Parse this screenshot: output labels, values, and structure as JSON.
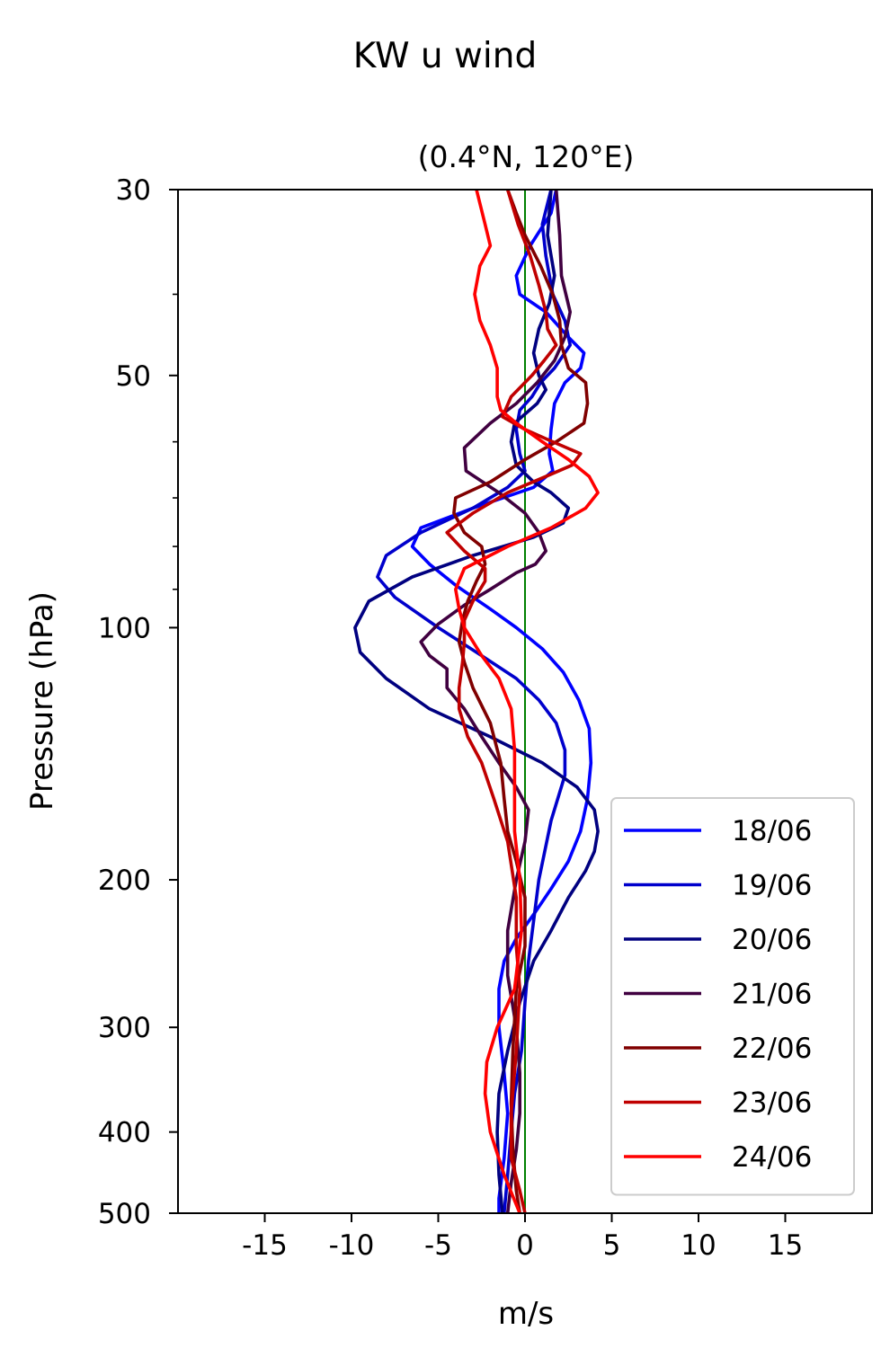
{
  "chart_data": {
    "type": "line",
    "title": "KW u wind",
    "subtitle": "(0.4°N, 120°E)",
    "xlabel": "m/s",
    "ylabel": "Pressure (hPa)",
    "xlim": [
      -20,
      20
    ],
    "ylim": [
      500,
      30
    ],
    "y_scale": "log",
    "x_ticks": [
      -15,
      -10,
      -5,
      0,
      5,
      10,
      15
    ],
    "y_ticks": [
      30,
      50,
      100,
      200,
      300,
      400,
      500
    ],
    "y_minor_ticks": [
      40,
      60,
      70,
      80,
      90
    ],
    "reference_line": {
      "x": 0,
      "color": "#008000"
    },
    "legend_position": "lower-right",
    "grid": false,
    "series": [
      {
        "name": "18/06",
        "color": "#0000ff",
        "points": [
          [
            1.8,
            30
          ],
          [
            1.5,
            32
          ],
          [
            0.3,
            35
          ],
          [
            -0.5,
            38
          ],
          [
            -0.3,
            40
          ],
          [
            1.2,
            42
          ],
          [
            2.5,
            45
          ],
          [
            3.4,
            47
          ],
          [
            3.2,
            49
          ],
          [
            2.3,
            51
          ],
          [
            1.7,
            54
          ],
          [
            1.5,
            58
          ],
          [
            1.4,
            62
          ],
          [
            1.6,
            65
          ],
          [
            0.5,
            68
          ],
          [
            -3,
            72
          ],
          [
            -6,
            76
          ],
          [
            -6.5,
            80
          ],
          [
            -5.5,
            84
          ],
          [
            -4,
            89
          ],
          [
            -2,
            95
          ],
          [
            -0.5,
            100
          ],
          [
            1,
            106
          ],
          [
            2.2,
            113
          ],
          [
            3.1,
            122
          ],
          [
            3.7,
            132
          ],
          [
            3.8,
            145
          ],
          [
            3.6,
            160
          ],
          [
            3.2,
            175
          ],
          [
            2.5,
            190
          ],
          [
            1.5,
            205
          ],
          [
            0.5,
            220
          ],
          [
            -0.5,
            235
          ],
          [
            -1.2,
            250
          ],
          [
            -1.5,
            270
          ],
          [
            -1.5,
            300
          ],
          [
            -1.2,
            340
          ],
          [
            -1,
            380
          ],
          [
            -1.2,
            430
          ],
          [
            -1.5,
            480
          ],
          [
            -1.5,
            500
          ]
        ]
      },
      {
        "name": "19/06",
        "color": "#0000cc",
        "points": [
          [
            1.5,
            30
          ],
          [
            1,
            33
          ],
          [
            1.2,
            36
          ],
          [
            1.6,
            40
          ],
          [
            2.3,
            43
          ],
          [
            2.6,
            46
          ],
          [
            1.7,
            49
          ],
          [
            0.9,
            51
          ],
          [
            0.4,
            53
          ],
          [
            -0.3,
            55
          ],
          [
            -0.5,
            58
          ],
          [
            -0.3,
            62
          ],
          [
            0,
            65
          ],
          [
            -1,
            68
          ],
          [
            -3,
            72
          ],
          [
            -6,
            77
          ],
          [
            -8,
            82
          ],
          [
            -8.5,
            87
          ],
          [
            -7.5,
            92
          ],
          [
            -5,
            100
          ],
          [
            -2.5,
            108
          ],
          [
            -0.5,
            115
          ],
          [
            0.8,
            122
          ],
          [
            1.8,
            130
          ],
          [
            2.3,
            140
          ],
          [
            2.3,
            150
          ],
          [
            1.5,
            170
          ],
          [
            0.8,
            200
          ],
          [
            0.2,
            250
          ],
          [
            0,
            280
          ],
          [
            -0.2,
            320
          ],
          [
            -0.6,
            360
          ],
          [
            -0.8,
            400
          ],
          [
            -1,
            450
          ],
          [
            -1.2,
            500
          ]
        ]
      },
      {
        "name": "20/06",
        "color": "#000080",
        "points": [
          [
            1.5,
            30
          ],
          [
            1.3,
            34
          ],
          [
            1.7,
            38
          ],
          [
            1.4,
            41
          ],
          [
            0.8,
            44
          ],
          [
            0.5,
            47
          ],
          [
            0.8,
            50
          ],
          [
            1.2,
            52
          ],
          [
            0.7,
            54
          ],
          [
            -0.6,
            57
          ],
          [
            -0.8,
            60
          ],
          [
            -0.5,
            64
          ],
          [
            0.5,
            67
          ],
          [
            1.5,
            69
          ],
          [
            2.5,
            72
          ],
          [
            2.2,
            75
          ],
          [
            0.5,
            78
          ],
          [
            -3,
            82
          ],
          [
            -6.5,
            87
          ],
          [
            -9,
            93
          ],
          [
            -9.8,
            100
          ],
          [
            -9.5,
            107
          ],
          [
            -8,
            115
          ],
          [
            -5.5,
            125
          ],
          [
            -2,
            135
          ],
          [
            1,
            145
          ],
          [
            3,
            155
          ],
          [
            4,
            165
          ],
          [
            4.2,
            175
          ],
          [
            4,
            185
          ],
          [
            3.5,
            195
          ],
          [
            2.5,
            210
          ],
          [
            1.5,
            230
          ],
          [
            0.5,
            250
          ],
          [
            -0.3,
            280
          ],
          [
            -1,
            320
          ],
          [
            -1.5,
            360
          ],
          [
            -1.6,
            400
          ],
          [
            -1.5,
            450
          ],
          [
            -1.3,
            500
          ]
        ]
      },
      {
        "name": "21/06",
        "color": "#400040",
        "points": [
          [
            1.8,
            30
          ],
          [
            2,
            34
          ],
          [
            2.1,
            38
          ],
          [
            2.6,
            42
          ],
          [
            2.3,
            45
          ],
          [
            1.7,
            48
          ],
          [
            0.7,
            51
          ],
          [
            -0.5,
            54
          ],
          [
            -2,
            57
          ],
          [
            -3.5,
            61
          ],
          [
            -3.4,
            65
          ],
          [
            -1.5,
            69
          ],
          [
            0,
            73
          ],
          [
            0.8,
            77
          ],
          [
            1.2,
            81
          ],
          [
            0.6,
            84
          ],
          [
            -0.5,
            86
          ],
          [
            -2,
            90
          ],
          [
            -3.5,
            94
          ],
          [
            -5,
            99
          ],
          [
            -6,
            104
          ],
          [
            -5.5,
            108
          ],
          [
            -4.5,
            112
          ],
          [
            -4.5,
            118
          ],
          [
            -3.5,
            125
          ],
          [
            -2.5,
            135
          ],
          [
            -1.5,
            145
          ],
          [
            -0.5,
            155
          ],
          [
            0.2,
            165
          ],
          [
            0,
            180
          ],
          [
            -0.5,
            200
          ],
          [
            -1,
            230
          ],
          [
            -1,
            260
          ],
          [
            -0.5,
            300
          ],
          [
            -0.3,
            340
          ],
          [
            -0.3,
            380
          ],
          [
            -0.5,
            420
          ],
          [
            -0.8,
            460
          ],
          [
            -1,
            500
          ]
        ]
      },
      {
        "name": "22/06",
        "color": "#800000",
        "points": [
          [
            -1,
            30
          ],
          [
            -0.5,
            32
          ],
          [
            0,
            34
          ],
          [
            0.9,
            37
          ],
          [
            1.6,
            40
          ],
          [
            2,
            43
          ],
          [
            2.1,
            46
          ],
          [
            2.5,
            49
          ],
          [
            3.5,
            51
          ],
          [
            3.6,
            54
          ],
          [
            3.4,
            57
          ],
          [
            1.8,
            60
          ],
          [
            0,
            63
          ],
          [
            -2,
            67
          ],
          [
            -4,
            70
          ],
          [
            -4.1,
            73
          ],
          [
            -3.5,
            77
          ],
          [
            -2.5,
            80
          ],
          [
            -2.3,
            84
          ],
          [
            -2.8,
            88
          ],
          [
            -3.3,
            93
          ],
          [
            -3.6,
            98
          ],
          [
            -3.8,
            104
          ],
          [
            -3.5,
            110
          ],
          [
            -3,
            118
          ],
          [
            -2,
            130
          ],
          [
            -1.4,
            145
          ],
          [
            -1.2,
            160
          ],
          [
            -1,
            175
          ],
          [
            -0.5,
            190
          ],
          [
            0,
            210
          ],
          [
            0,
            240
          ],
          [
            -0.5,
            270
          ],
          [
            -0.7,
            320
          ],
          [
            -0.8,
            370
          ],
          [
            -0.7,
            420
          ],
          [
            -0.5,
            470
          ],
          [
            -0.3,
            500
          ]
        ]
      },
      {
        "name": "23/06",
        "color": "#c00000",
        "points": [
          [
            -1,
            30
          ],
          [
            -0.4,
            33
          ],
          [
            0.3,
            36
          ],
          [
            0.8,
            39
          ],
          [
            1.2,
            42
          ],
          [
            1.3,
            44
          ],
          [
            1.8,
            46
          ],
          [
            1.1,
            48
          ],
          [
            0.4,
            50
          ],
          [
            -0.8,
            53
          ],
          [
            -1.3,
            56
          ],
          [
            0,
            58
          ],
          [
            1.6,
            60
          ],
          [
            3.2,
            62
          ],
          [
            2.7,
            64
          ],
          [
            1.2,
            66
          ],
          [
            -1,
            69
          ],
          [
            -3,
            73
          ],
          [
            -4.5,
            77
          ],
          [
            -3.5,
            81
          ],
          [
            -2.3,
            85
          ],
          [
            -2.3,
            88
          ],
          [
            -3,
            93
          ],
          [
            -3.5,
            98
          ],
          [
            -3.5,
            104
          ],
          [
            -3.6,
            110
          ],
          [
            -3.8,
            118
          ],
          [
            -3.8,
            125
          ],
          [
            -3.3,
            135
          ],
          [
            -2.5,
            145
          ],
          [
            -1.8,
            160
          ],
          [
            -1,
            180
          ],
          [
            -0.5,
            210
          ],
          [
            -0.5,
            240
          ],
          [
            -0.3,
            270
          ],
          [
            -0.5,
            320
          ],
          [
            -0.8,
            380
          ],
          [
            -0.8,
            430
          ],
          [
            -0.3,
            470
          ],
          [
            0,
            500
          ]
        ]
      },
      {
        "name": "24/06",
        "color": "#ff0000",
        "points": [
          [
            -2.8,
            30
          ],
          [
            -2.3,
            33
          ],
          [
            -2,
            35
          ],
          [
            -2.6,
            37
          ],
          [
            -2.9,
            40
          ],
          [
            -2.6,
            43
          ],
          [
            -2,
            46
          ],
          [
            -1.6,
            49
          ],
          [
            -1.6,
            51
          ],
          [
            -1.6,
            53
          ],
          [
            -1.4,
            55
          ],
          [
            -0.5,
            57
          ],
          [
            1,
            60
          ],
          [
            2.5,
            63
          ],
          [
            3.7,
            66
          ],
          [
            4.2,
            69
          ],
          [
            3.5,
            72
          ],
          [
            1.5,
            76
          ],
          [
            -1,
            80
          ],
          [
            -3.5,
            85
          ],
          [
            -4,
            90
          ],
          [
            -3.8,
            95
          ],
          [
            -3.5,
            100
          ],
          [
            -2.5,
            108
          ],
          [
            -1.5,
            115
          ],
          [
            -0.8,
            125
          ],
          [
            -0.6,
            140
          ],
          [
            -0.6,
            155
          ],
          [
            -0.6,
            175
          ],
          [
            -0.3,
            200
          ],
          [
            -0.2,
            230
          ],
          [
            -0.6,
            270
          ],
          [
            -1.6,
            300
          ],
          [
            -2.2,
            330
          ],
          [
            -2.3,
            360
          ],
          [
            -2,
            400
          ],
          [
            -1.2,
            450
          ],
          [
            -0.3,
            500
          ]
        ]
      }
    ]
  }
}
